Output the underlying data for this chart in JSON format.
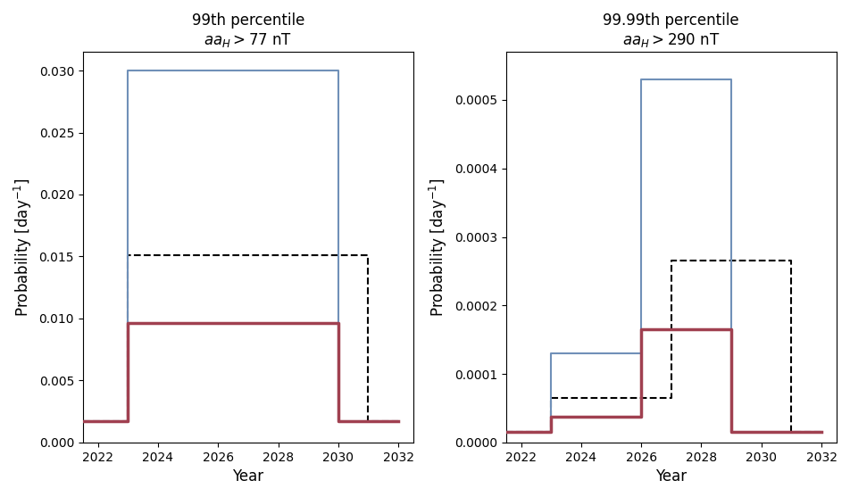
{
  "left": {
    "title_line1": "99th percentile",
    "title_line2": "$aa_H > 77$ nT",
    "ylim": [
      0,
      0.0315
    ],
    "yticks": [
      0.0,
      0.005,
      0.01,
      0.015,
      0.02,
      0.025,
      0.03
    ],
    "blue_x": [
      2021.5,
      2023,
      2023,
      2030,
      2030,
      2032
    ],
    "blue_y": [
      0.00175,
      0.00175,
      0.03,
      0.03,
      0.00175,
      0.00175
    ],
    "red_x": [
      2021.5,
      2023,
      2023,
      2030,
      2030,
      2032
    ],
    "red_y": [
      0.00175,
      0.00175,
      0.0096,
      0.0096,
      0.00175,
      0.00175
    ],
    "dash_x": [
      2021.5,
      2023,
      2023,
      2030,
      2030,
      2031,
      2031,
      2032
    ],
    "dash_y": [
      0.00175,
      0.00175,
      0.0151,
      0.0151,
      0.0151,
      0.0151,
      0.00175,
      0.00175
    ]
  },
  "right": {
    "title_line1": "99.99th percentile",
    "title_line2": "$aa_H > 290$ nT",
    "ylim": [
      0,
      0.00057
    ],
    "yticks": [
      0.0,
      0.0001,
      0.0002,
      0.0003,
      0.0004,
      0.0005
    ],
    "blue_x": [
      2021.5,
      2023,
      2023,
      2026,
      2026,
      2029,
      2029,
      2032
    ],
    "blue_y": [
      1.5e-05,
      1.5e-05,
      0.00013,
      0.00013,
      0.00053,
      0.00053,
      1.5e-05,
      1.5e-05
    ],
    "red_x": [
      2021.5,
      2023,
      2023,
      2026,
      2026,
      2029,
      2029,
      2032
    ],
    "red_y": [
      1.5e-05,
      1.5e-05,
      3.8e-05,
      3.8e-05,
      0.000165,
      0.000165,
      1.5e-05,
      1.5e-05
    ],
    "dash_x": [
      2021.5,
      2023,
      2023,
      2026,
      2026,
      2027,
      2027,
      2031,
      2031,
      2032
    ],
    "dash_y": [
      1.5e-05,
      1.5e-05,
      6.5e-05,
      6.5e-05,
      6.5e-05,
      6.5e-05,
      0.000265,
      0.000265,
      1.5e-05,
      1.5e-05
    ]
  },
  "blue_color": "#7090b8",
  "red_color": "#a04050",
  "dash_color": "#000000",
  "xlabel": "Year",
  "ylabel": "Probability [day$^{-1}$]",
  "xticks": [
    2022,
    2024,
    2026,
    2028,
    2030,
    2032
  ],
  "xlim": [
    2021.5,
    2032.5
  ],
  "blue_lw": 1.5,
  "red_lw": 2.5,
  "dash_lw": 1.5
}
